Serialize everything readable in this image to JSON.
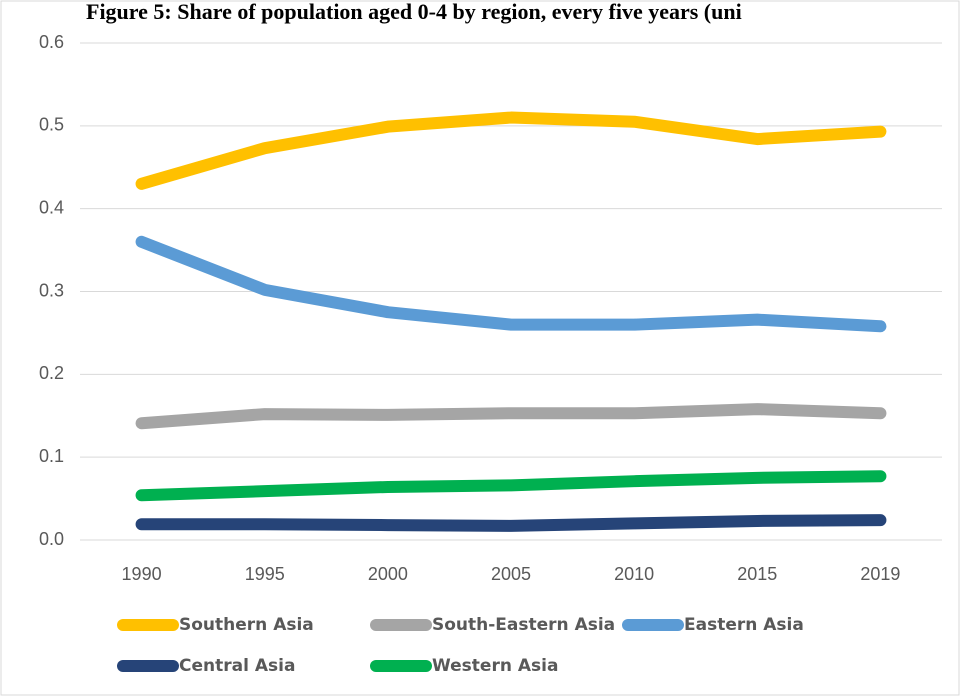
{
  "chart_data": {
    "type": "line",
    "title": "Figure 5: Share of population aged 0-4 by region, every five years (uni",
    "categories": [
      "1990",
      "1995",
      "2000",
      "2005",
      "2010",
      "2015",
      "2019"
    ],
    "series": [
      {
        "name": "Southern Asia",
        "color": "#FFC000",
        "values": [
          0.43,
          0.473,
          0.499,
          0.51,
          0.505,
          0.484,
          0.493
        ]
      },
      {
        "name": "South-Eastern Asia",
        "color": "#A5A5A5",
        "values": [
          0.141,
          0.152,
          0.151,
          0.153,
          0.153,
          0.158,
          0.153
        ]
      },
      {
        "name": "Eastern Asia",
        "color": "#5B9BD5",
        "values": [
          0.36,
          0.302,
          0.275,
          0.26,
          0.26,
          0.266,
          0.258
        ]
      },
      {
        "name": "Central Asia",
        "color": "#264478",
        "values": [
          0.019,
          0.019,
          0.018,
          0.017,
          0.02,
          0.023,
          0.024
        ]
      },
      {
        "name": "Western Asia",
        "color": "#00B050",
        "values": [
          0.054,
          0.059,
          0.064,
          0.066,
          0.071,
          0.075,
          0.077
        ]
      }
    ],
    "ylim": [
      0,
      0.6
    ],
    "yticks": [
      {
        "value": 0,
        "label": "0.0"
      },
      0.1,
      0.2,
      0.3,
      0.4,
      0.5,
      0.6
    ],
    "grid": true
  }
}
